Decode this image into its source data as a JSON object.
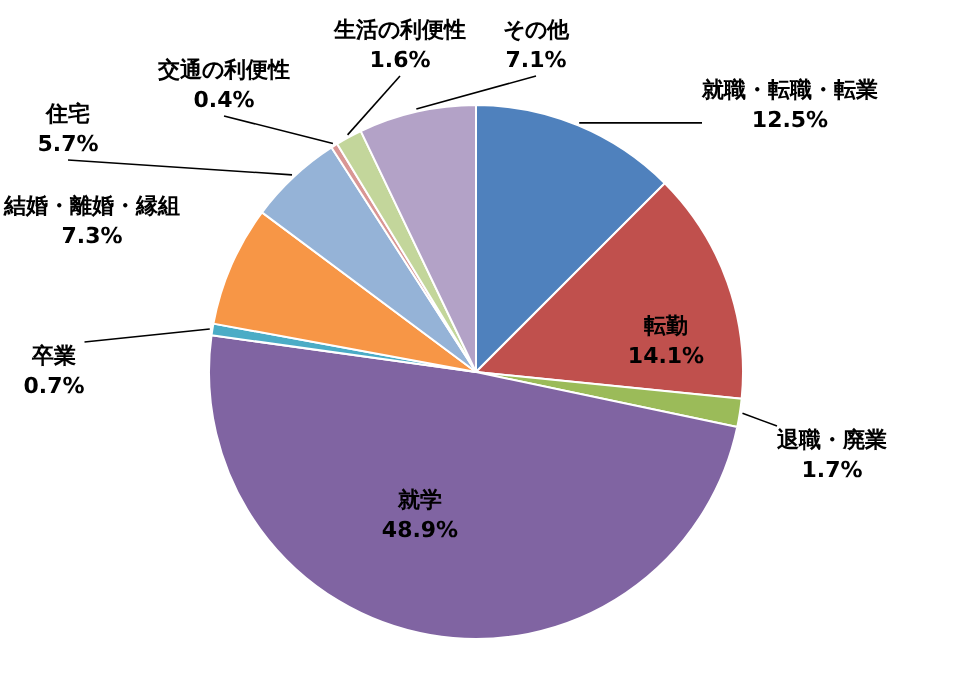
{
  "chart_data": {
    "type": "pie",
    "categories": [
      "就職・転職・転業",
      "転勤",
      "退職・廃業",
      "就学",
      "卒業",
      "結婚・離婚・縁組",
      "住宅",
      "交通の利便性",
      "生活の利便性",
      "その他"
    ],
    "values": [
      12.5,
      14.1,
      1.7,
      48.9,
      0.7,
      7.3,
      5.7,
      0.4,
      1.6,
      7.1
    ],
    "value_labels": [
      "12.5%",
      "14.1%",
      "1.7%",
      "48.9%",
      "0.7%",
      "7.3%",
      "5.7%",
      "0.4%",
      "1.6%",
      "7.1%"
    ],
    "colors": [
      "#4f81bd",
      "#c0504d",
      "#9bbb59",
      "#8064a2",
      "#4bacc6",
      "#f79646",
      "#95b3d7",
      "#d99694",
      "#c3d69b",
      "#b3a2c7"
    ],
    "legend": false
  }
}
